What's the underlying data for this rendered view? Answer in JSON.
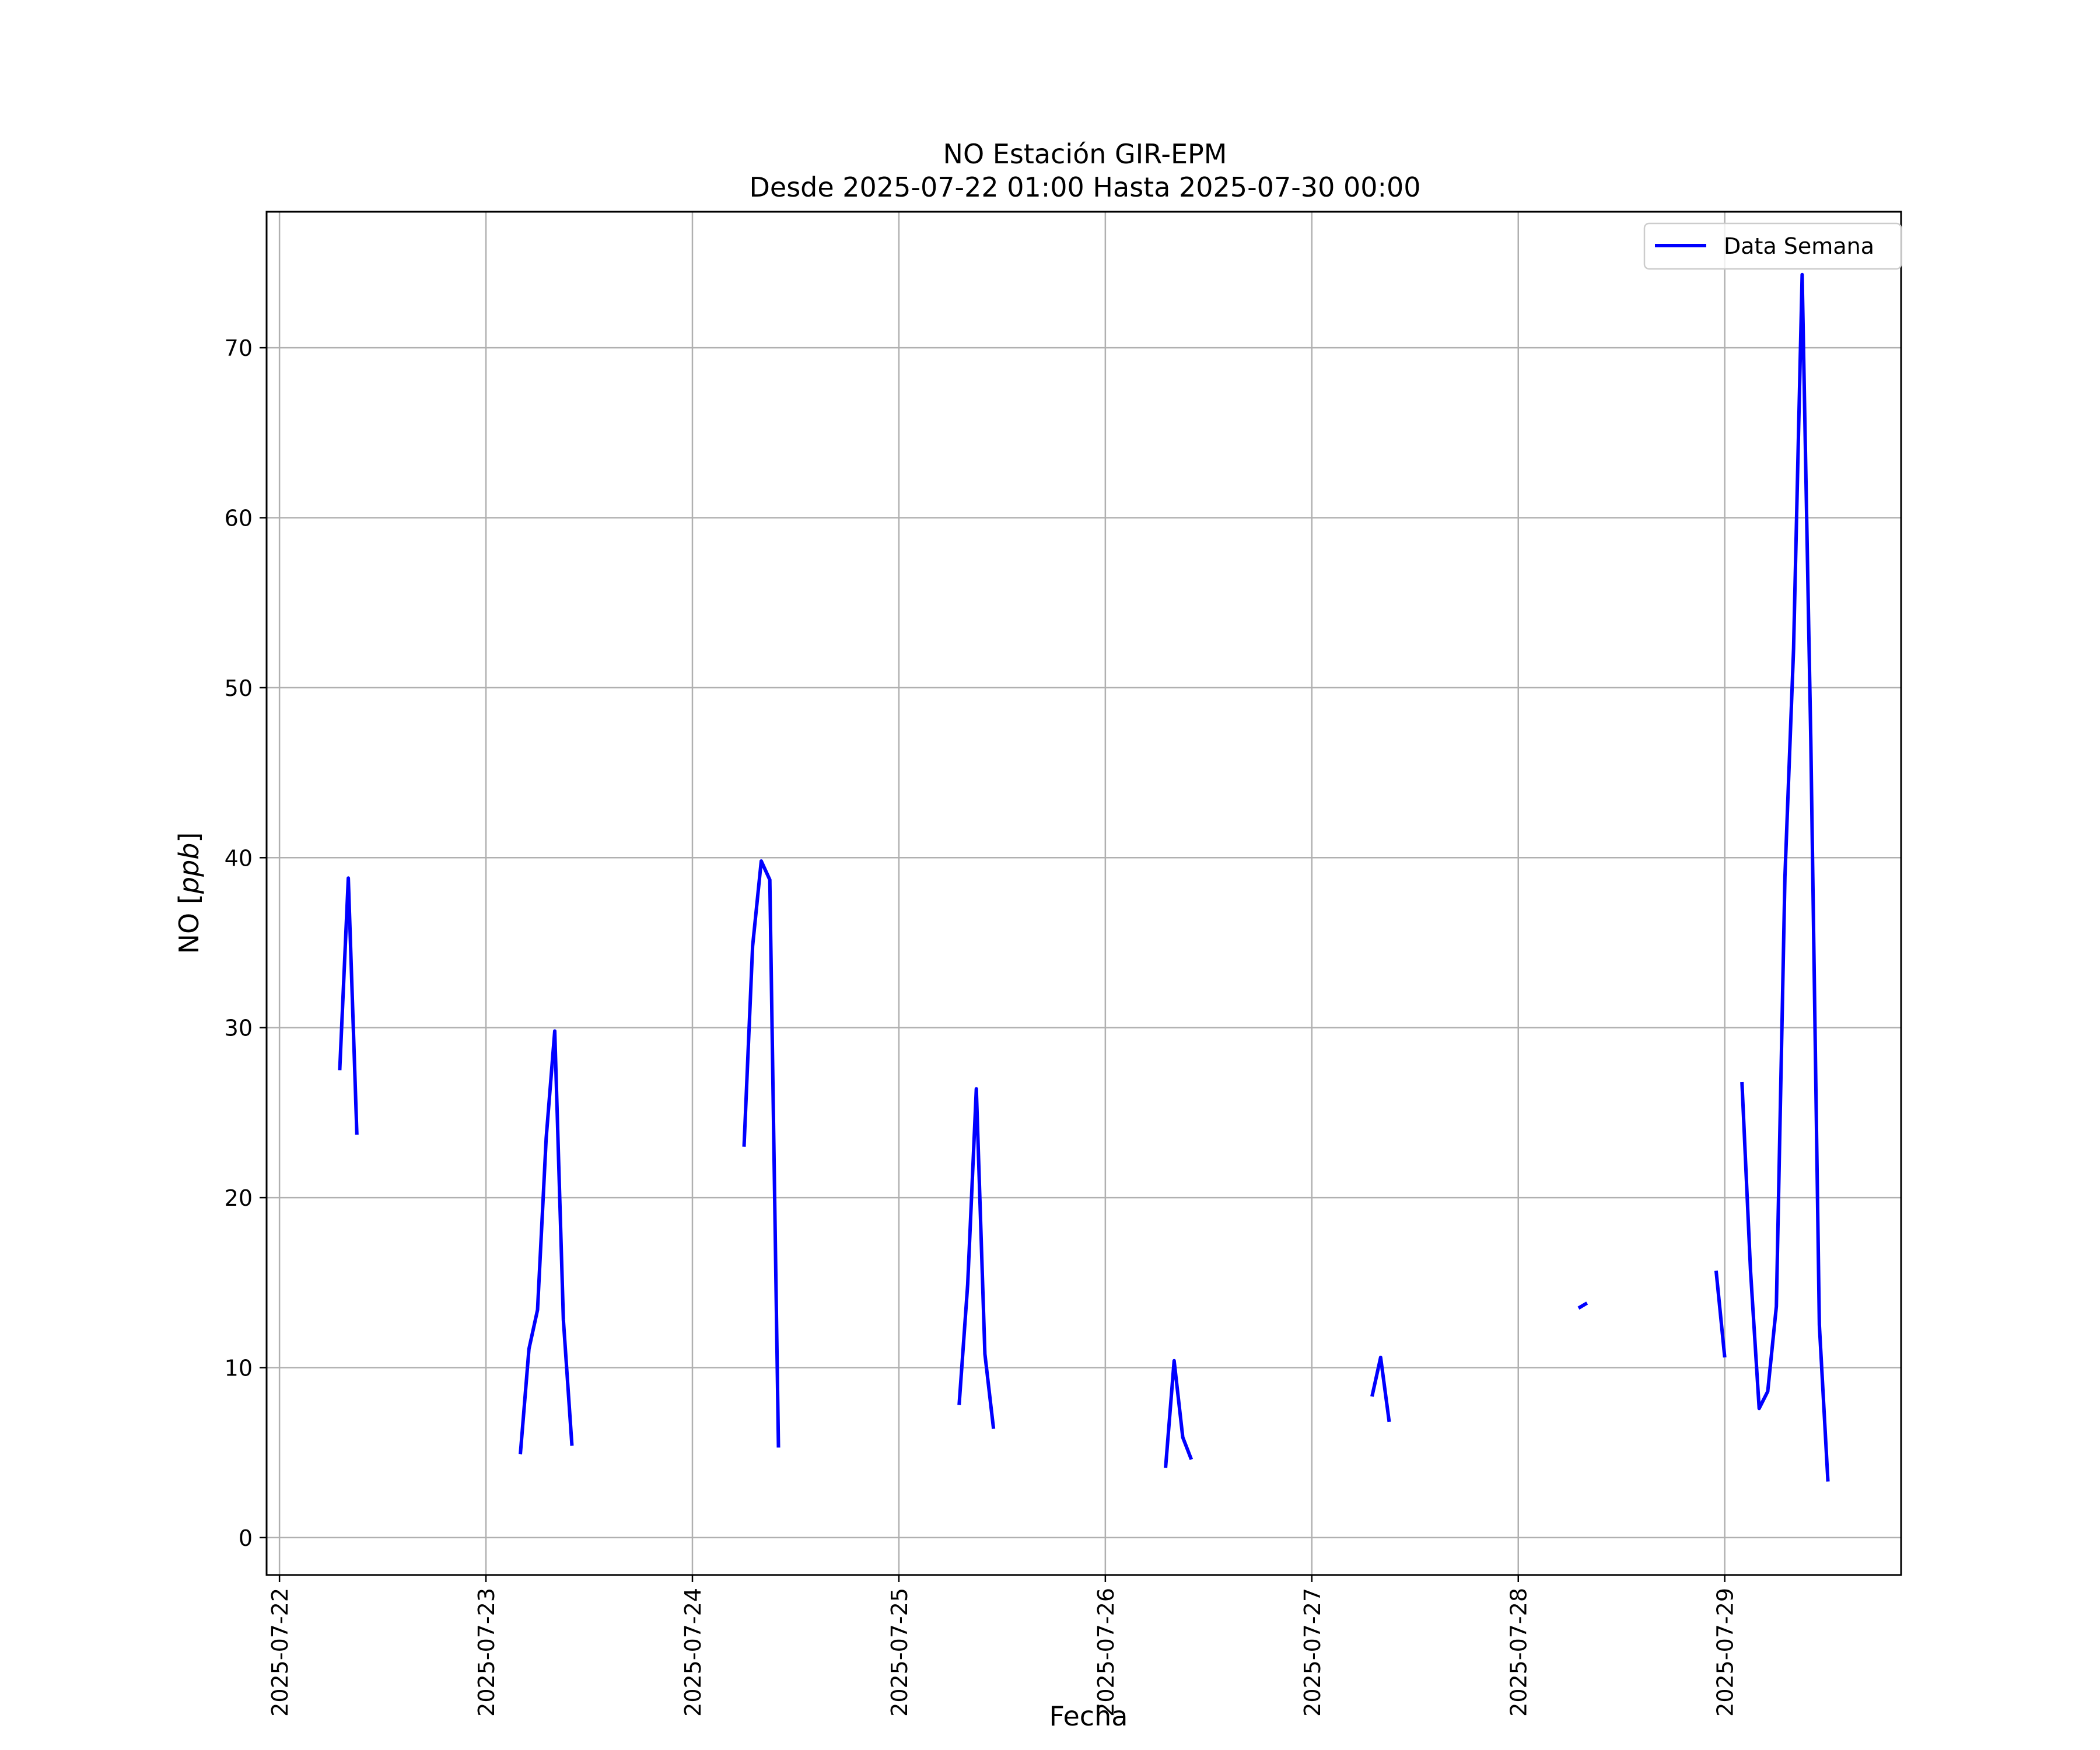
{
  "chart_data": {
    "type": "line",
    "title": "NO Estación GIR-EPM",
    "subtitle": "Desde 2025-07-22 01:00 Hasta 2025-07-30 00:00",
    "xlabel": "Fecha",
    "ylabel": "NO [ppb]",
    "ylabel_prefix": "NO [",
    "ylabel_unit": "ppb",
    "ylabel_suffix": "]",
    "x_type": "datetime",
    "xlim": [
      "2025-07-21 22:30",
      "2025-07-29 20:30"
    ],
    "ylim": [
      -2.2,
      78.0
    ],
    "x_ticks": [
      "2025-07-22",
      "2025-07-23",
      "2025-07-24",
      "2025-07-25",
      "2025-07-26",
      "2025-07-27",
      "2025-07-28",
      "2025-07-29"
    ],
    "y_ticks": [
      0,
      10,
      20,
      30,
      40,
      50,
      60,
      70
    ],
    "grid": true,
    "legend_position": "top-right",
    "series": [
      {
        "name": "Data Semana",
        "color": "#0000ff",
        "segments": [
          [
            [
              "2025-07-22 07:00",
              27.5
            ],
            [
              "2025-07-22 08:00",
              38.8
            ],
            [
              "2025-07-22 09:00",
              23.7
            ]
          ],
          [
            [
              "2025-07-23 04:00",
              4.9
            ],
            [
              "2025-07-23 05:00",
              11.1
            ],
            [
              "2025-07-23 06:00",
              13.4
            ],
            [
              "2025-07-23 07:00",
              23.5
            ],
            [
              "2025-07-23 08:00",
              29.8
            ],
            [
              "2025-07-23 09:00",
              12.8
            ],
            [
              "2025-07-23 10:00",
              5.4
            ]
          ],
          [
            [
              "2025-07-24 06:00",
              23.0
            ],
            [
              "2025-07-24 07:00",
              34.8
            ],
            [
              "2025-07-24 08:00",
              39.8
            ],
            [
              "2025-07-24 09:00",
              38.7
            ],
            [
              "2025-07-24 10:00",
              5.3
            ]
          ],
          [
            [
              "2025-07-25 07:00",
              7.8
            ],
            [
              "2025-07-25 08:00",
              14.9
            ],
            [
              "2025-07-25 09:00",
              26.4
            ],
            [
              "2025-07-25 10:00",
              10.8
            ],
            [
              "2025-07-25 11:00",
              6.4
            ]
          ],
          [
            [
              "2025-07-26 07:00",
              4.1
            ],
            [
              "2025-07-26 08:00",
              10.4
            ],
            [
              "2025-07-26 09:00",
              5.9
            ],
            [
              "2025-07-26 10:00",
              4.6
            ]
          ],
          [
            [
              "2025-07-27 07:00",
              8.3
            ],
            [
              "2025-07-27 08:00",
              10.6
            ],
            [
              "2025-07-27 09:00",
              6.8
            ]
          ],
          [
            [
              "2025-07-28 07:00",
              13.5
            ],
            [
              "2025-07-28 08:00",
              13.8
            ]
          ],
          [
            [
              "2025-07-28 23:00",
              15.7
            ],
            [
              "2025-07-29 00:00",
              10.6
            ]
          ],
          [
            [
              "2025-07-29 02:00",
              26.8
            ],
            [
              "2025-07-29 03:00",
              15.7
            ],
            [
              "2025-07-29 04:00",
              7.6
            ],
            [
              "2025-07-29 05:00",
              8.6
            ],
            [
              "2025-07-29 06:00",
              13.6
            ],
            [
              "2025-07-29 07:00",
              38.9
            ],
            [
              "2025-07-29 08:00",
              52.3
            ],
            [
              "2025-07-29 09:00",
              74.3
            ],
            [
              "2025-07-29 10:00",
              47.0
            ],
            [
              "2025-07-29 11:00",
              12.5
            ],
            [
              "2025-07-29 12:00",
              3.3
            ]
          ]
        ]
      }
    ]
  }
}
